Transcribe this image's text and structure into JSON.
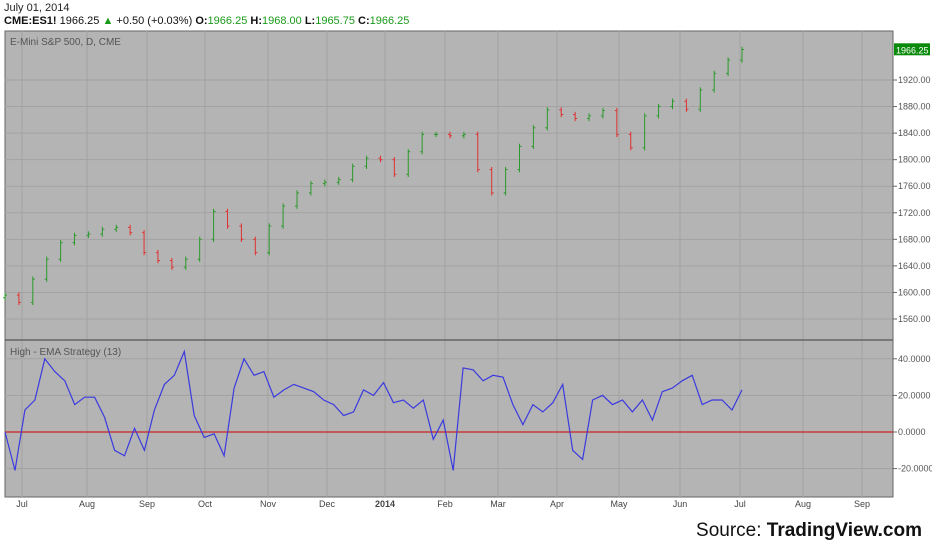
{
  "header": {
    "date": "July 01, 2014",
    "symbol": "CME:ES1!",
    "last": "1966.25",
    "change": "+0.50 (+0.03%)",
    "o_label": "O:",
    "o": "1966.25",
    "h_label": "H:",
    "h": "1968.00",
    "l_label": "L:",
    "l": "1965.75",
    "c_label": "C:",
    "c": "1966.25"
  },
  "source": {
    "prefix": "Source:",
    "brand": "TradingView.com"
  },
  "colors": {
    "up": "#2a9a2a",
    "down": "#e03030",
    "oscillator": "#3a3adf",
    "zero_line": "#cc2222",
    "background": "#b4b4b4",
    "last_badge": "#0a8a0a"
  },
  "chart_data": [
    {
      "type": "ohlc",
      "title": "E-Mini S&P 500, D, CME",
      "last_price_label": "1966.25",
      "ylim": [
        1540,
        1990
      ],
      "yticks": [
        "1920.00",
        "1880.00",
        "1840.00",
        "1800.00",
        "1760.00",
        "1720.00",
        "1680.00",
        "1640.00",
        "1600.00",
        "1560.00"
      ],
      "ytick_values": [
        1920,
        1880,
        1840,
        1800,
        1760,
        1720,
        1680,
        1640,
        1600,
        1560
      ],
      "grid": true,
      "closes": [
        1596,
        1585,
        1620,
        1650,
        1675,
        1686,
        1688,
        1695,
        1698,
        1690,
        1660,
        1648,
        1638,
        1650,
        1680,
        1722,
        1700,
        1680,
        1660,
        1700,
        1730,
        1750,
        1764,
        1766,
        1770,
        1790,
        1802,
        1800,
        1778,
        1812,
        1838,
        1838,
        1836,
        1838,
        1785,
        1750,
        1785,
        1820,
        1848,
        1875,
        1868,
        1862,
        1866,
        1874,
        1838,
        1818,
        1866,
        1880,
        1888,
        1876,
        1905,
        1930,
        1950,
        1966
      ]
    },
    {
      "type": "line",
      "title": "High - EMA Strategy (13)",
      "ylim": [
        -35,
        50
      ],
      "yticks": [
        "40.0000",
        "20.0000",
        "0.0000",
        "-20.0000"
      ],
      "ytick_values": [
        40,
        20,
        0,
        -20
      ],
      "reference_line": 0,
      "values": [
        0,
        -21,
        12,
        17.5,
        40,
        33,
        28,
        15,
        19,
        19,
        8,
        -10,
        -13,
        2,
        -10,
        12,
        26,
        31,
        44,
        9,
        -3,
        -1,
        -13,
        24,
        40,
        31,
        33,
        19,
        23,
        26,
        24,
        22,
        17.5,
        15,
        9,
        11,
        23,
        20,
        27,
        16,
        17.5,
        13,
        17.5,
        -4,
        6.5,
        -21,
        35,
        34,
        28,
        31,
        30,
        15,
        4,
        15,
        11,
        16,
        26,
        -10,
        -15,
        17.5,
        20,
        15,
        17.5,
        11,
        17.5,
        6.5,
        22,
        24,
        28,
        31,
        15,
        17.5,
        17.5,
        12,
        23
      ]
    }
  ],
  "x_axis": {
    "ticks": [
      "Jul",
      "Aug",
      "Sep",
      "Oct",
      "Nov",
      "Dec",
      "2014",
      "Feb",
      "Mar",
      "Apr",
      "May",
      "Jun",
      "Jul",
      "Aug",
      "Sep"
    ]
  }
}
